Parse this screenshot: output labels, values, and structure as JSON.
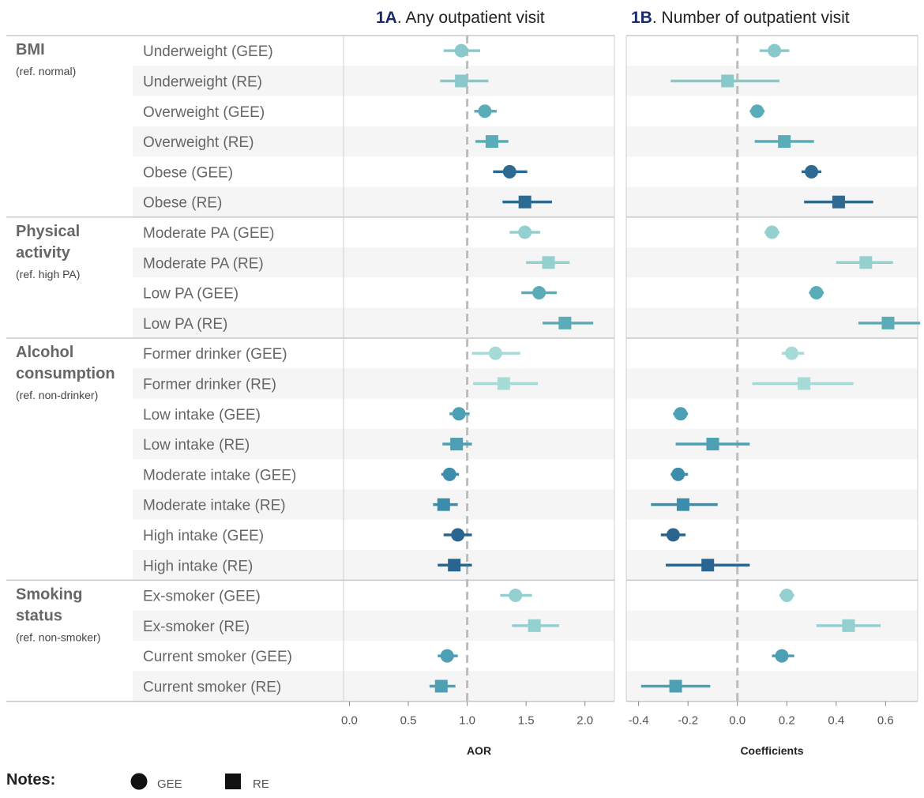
{
  "chart_data": [
    {
      "id": "1A",
      "type": "forest",
      "title_bold": "1A",
      "title_rest": ". Any outpatient visit",
      "xlabel": "AOR",
      "xlim": [
        -0.05,
        2.25
      ],
      "ref_line": 1.0,
      "ticks": [
        0.0,
        0.5,
        1.0,
        1.5,
        2.0
      ],
      "tick_labels": [
        "0.0",
        "0.5",
        "1.0",
        "1.5",
        "2.0"
      ],
      "points": [
        {
          "label": "Underweight (GEE)",
          "est": 0.95,
          "lo": 0.8,
          "hi": 1.11,
          "marker": "circle",
          "color": "#89c9cb"
        },
        {
          "label": "Underweight (RE)",
          "est": 0.95,
          "lo": 0.77,
          "hi": 1.18,
          "marker": "square",
          "color": "#89c9cb"
        },
        {
          "label": "Overweight (GEE)",
          "est": 1.15,
          "lo": 1.06,
          "hi": 1.25,
          "marker": "circle",
          "color": "#5aacb8"
        },
        {
          "label": "Overweight (RE)",
          "est": 1.21,
          "lo": 1.07,
          "hi": 1.35,
          "marker": "square",
          "color": "#5aacb8"
        },
        {
          "label": "Obese (GEE)",
          "est": 1.36,
          "lo": 1.22,
          "hi": 1.51,
          "marker": "circle",
          "color": "#2d6a92"
        },
        {
          "label": "Obese (RE)",
          "est": 1.49,
          "lo": 1.3,
          "hi": 1.72,
          "marker": "square",
          "color": "#2d6a92"
        },
        {
          "label": "Moderate PA (GEE)",
          "est": 1.49,
          "lo": 1.36,
          "hi": 1.62,
          "marker": "circle",
          "color": "#94d0d0"
        },
        {
          "label": "Moderate PA (RE)",
          "est": 1.69,
          "lo": 1.5,
          "hi": 1.87,
          "marker": "square",
          "color": "#94d0d0"
        },
        {
          "label": "Low PA (GEE)",
          "est": 1.61,
          "lo": 1.46,
          "hi": 1.76,
          "marker": "circle",
          "color": "#5aacb8"
        },
        {
          "label": "Low PA (RE)",
          "est": 1.83,
          "lo": 1.64,
          "hi": 2.07,
          "marker": "square",
          "color": "#5aacb8"
        },
        {
          "label": "Former drinker (GEE)",
          "est": 1.24,
          "lo": 1.04,
          "hi": 1.45,
          "marker": "circle",
          "color": "#a6dad6"
        },
        {
          "label": "Former drinker (RE)",
          "est": 1.31,
          "lo": 1.05,
          "hi": 1.6,
          "marker": "square",
          "color": "#a6dad6"
        },
        {
          "label": "Low intake (GEE)",
          "est": 0.93,
          "lo": 0.85,
          "hi": 1.02,
          "marker": "circle",
          "color": "#4d9fb4"
        },
        {
          "label": "Low intake (RE)",
          "est": 0.91,
          "lo": 0.79,
          "hi": 1.04,
          "marker": "square",
          "color": "#4d9fb4"
        },
        {
          "label": "Moderate intake (GEE)",
          "est": 0.85,
          "lo": 0.78,
          "hi": 0.93,
          "marker": "circle",
          "color": "#3b8dab"
        },
        {
          "label": "Moderate intake (RE)",
          "est": 0.8,
          "lo": 0.71,
          "hi": 0.92,
          "marker": "square",
          "color": "#3b8dab"
        },
        {
          "label": "High intake (GEE)",
          "est": 0.92,
          "lo": 0.8,
          "hi": 1.04,
          "marker": "circle",
          "color": "#2a6590"
        },
        {
          "label": "High intake (RE)",
          "est": 0.89,
          "lo": 0.75,
          "hi": 1.04,
          "marker": "square",
          "color": "#2a6590"
        },
        {
          "label": "Ex-smoker (GEE)",
          "est": 1.41,
          "lo": 1.28,
          "hi": 1.55,
          "marker": "circle",
          "color": "#94d0d0"
        },
        {
          "label": "Ex-smoker (RE)",
          "est": 1.57,
          "lo": 1.38,
          "hi": 1.78,
          "marker": "square",
          "color": "#94d0d0"
        },
        {
          "label": "Current smoker (GEE)",
          "est": 0.83,
          "lo": 0.75,
          "hi": 0.92,
          "marker": "circle",
          "color": "#4d9fb4"
        },
        {
          "label": "Current smoker (RE)",
          "est": 0.78,
          "lo": 0.68,
          "hi": 0.9,
          "marker": "square",
          "color": "#4d9fb4"
        }
      ]
    },
    {
      "id": "1B",
      "type": "forest",
      "title_bold": "1B",
      "title_rest": ". Number of outpatient visit",
      "xlabel": "Coefficients",
      "xlim": [
        -0.45,
        0.73
      ],
      "ref_line": 0.0,
      "ticks": [
        -0.4,
        -0.2,
        0.0,
        0.2,
        0.4,
        0.6
      ],
      "tick_labels": [
        "-0.4",
        "-0.2",
        "0.0",
        "0.2",
        "0.4",
        "0.6"
      ],
      "points": [
        {
          "label": "Underweight (GEE)",
          "est": 0.15,
          "lo": 0.09,
          "hi": 0.21,
          "marker": "circle",
          "color": "#89c9cb"
        },
        {
          "label": "Underweight (RE)",
          "est": -0.04,
          "lo": -0.27,
          "hi": 0.17,
          "marker": "square",
          "color": "#89c9cb"
        },
        {
          "label": "Overweight (GEE)",
          "est": 0.08,
          "lo": 0.05,
          "hi": 0.11,
          "marker": "circle",
          "color": "#5aacb8"
        },
        {
          "label": "Overweight (RE)",
          "est": 0.19,
          "lo": 0.07,
          "hi": 0.31,
          "marker": "square",
          "color": "#5aacb8"
        },
        {
          "label": "Obese (GEE)",
          "est": 0.3,
          "lo": 0.26,
          "hi": 0.34,
          "marker": "circle",
          "color": "#2d6a92"
        },
        {
          "label": "Obese (RE)",
          "est": 0.41,
          "lo": 0.27,
          "hi": 0.55,
          "marker": "square",
          "color": "#2d6a92"
        },
        {
          "label": "Moderate PA (GEE)",
          "est": 0.14,
          "lo": 0.11,
          "hi": 0.17,
          "marker": "circle",
          "color": "#94d0d0"
        },
        {
          "label": "Moderate PA (RE)",
          "est": 0.52,
          "lo": 0.4,
          "hi": 0.63,
          "marker": "square",
          "color": "#94d0d0"
        },
        {
          "label": "Low PA (GEE)",
          "est": 0.32,
          "lo": 0.29,
          "hi": 0.35,
          "marker": "circle",
          "color": "#5aacb8"
        },
        {
          "label": "Low PA (RE)",
          "est": 0.61,
          "lo": 0.49,
          "hi": 0.74,
          "marker": "square",
          "color": "#5aacb8"
        },
        {
          "label": "Former drinker (GEE)",
          "est": 0.22,
          "lo": 0.18,
          "hi": 0.27,
          "marker": "circle",
          "color": "#a6dad6"
        },
        {
          "label": "Former drinker (RE)",
          "est": 0.27,
          "lo": 0.06,
          "hi": 0.47,
          "marker": "square",
          "color": "#a6dad6"
        },
        {
          "label": "Low intake (GEE)",
          "est": -0.23,
          "lo": -0.26,
          "hi": -0.2,
          "marker": "circle",
          "color": "#4d9fb4"
        },
        {
          "label": "Low intake (RE)",
          "est": -0.1,
          "lo": -0.25,
          "hi": 0.05,
          "marker": "square",
          "color": "#4d9fb4"
        },
        {
          "label": "Moderate intake (GEE)",
          "est": -0.24,
          "lo": -0.27,
          "hi": -0.2,
          "marker": "circle",
          "color": "#3b8dab"
        },
        {
          "label": "Moderate intake (RE)",
          "est": -0.22,
          "lo": -0.35,
          "hi": -0.08,
          "marker": "square",
          "color": "#3b8dab"
        },
        {
          "label": "High intake (GEE)",
          "est": -0.26,
          "lo": -0.31,
          "hi": -0.21,
          "marker": "circle",
          "color": "#2a6590"
        },
        {
          "label": "High intake (RE)",
          "est": -0.12,
          "lo": -0.29,
          "hi": 0.05,
          "marker": "square",
          "color": "#2a6590"
        },
        {
          "label": "Ex-smoker (GEE)",
          "est": 0.2,
          "lo": 0.17,
          "hi": 0.23,
          "marker": "circle",
          "color": "#94d0d0"
        },
        {
          "label": "Ex-smoker (RE)",
          "est": 0.45,
          "lo": 0.32,
          "hi": 0.58,
          "marker": "square",
          "color": "#94d0d0"
        },
        {
          "label": "Current smoker (GEE)",
          "est": 0.18,
          "lo": 0.14,
          "hi": 0.23,
          "marker": "circle",
          "color": "#4d9fb4"
        },
        {
          "label": "Current smoker (RE)",
          "est": -0.25,
          "lo": -0.39,
          "hi": -0.11,
          "marker": "square",
          "color": "#4d9fb4"
        }
      ]
    }
  ],
  "groups": [
    {
      "title_lines": [
        "BMI"
      ],
      "ref": "(ref. normal)"
    },
    {
      "title_lines": [
        "Physical",
        "activity"
      ],
      "ref": "(ref. high PA)"
    },
    {
      "title_lines": [
        "Alcohol",
        "consumption"
      ],
      "ref": "(ref. non-drinker)"
    },
    {
      "title_lines": [
        "Smoking",
        "status"
      ],
      "ref": "(ref. non-smoker)"
    }
  ],
  "notes": {
    "title": "Notes:",
    "gee_label": "GEE",
    "re_label": "RE"
  }
}
